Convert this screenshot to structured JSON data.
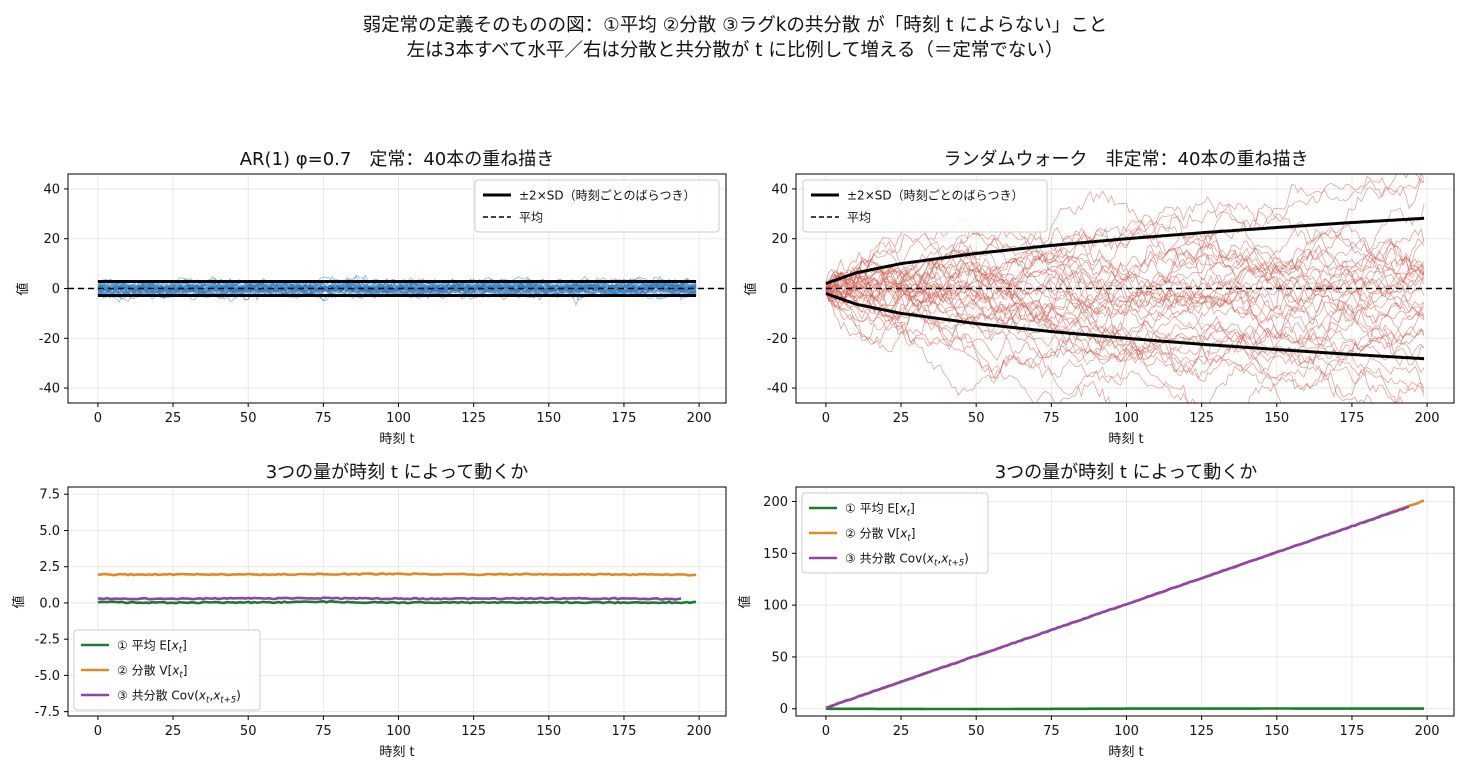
{
  "figure": {
    "suptitle_line1": "弱定常の定義そのものの図：①平均 ②分散 ③ラグkの共分散 が「時刻 t によらない」こと",
    "suptitle_line2": "左は3本すべて水平／右は分散と共分散が t に比例して増える（＝定常でない）"
  },
  "colors": {
    "ar_paths": "#2f7ec1",
    "rw_paths": "#d05a4a",
    "band": "#000000",
    "mean": "#000000",
    "q_mean": "#1e7a2e",
    "q_var": "#e08a25",
    "q_cov": "#8e44a8"
  },
  "chart_data": [
    {
      "id": "ar",
      "type": "line",
      "title": "AR(1) φ=0.7　定常：40本の重ね描き",
      "xlabel": "時刻 t",
      "ylabel": "値",
      "xlim": [
        -9.95,
        208.95
      ],
      "ylim": [
        -46,
        46
      ],
      "xticks": [
        0,
        25,
        50,
        75,
        100,
        125,
        150,
        175,
        200
      ],
      "yticks": [
        -40,
        -20,
        0,
        20,
        40
      ],
      "ytick_labels": [
        "-40",
        "-20",
        "0",
        "20",
        "40"
      ],
      "grid": true,
      "legend_loc": "upper right",
      "model": "ar1",
      "phi": 0.7,
      "n_paths": 40,
      "t_max": 199,
      "band": {
        "label": "±2×SD（時刻ごとのばらつき）",
        "values": [
          2.8,
          -2.8
        ]
      },
      "mean": {
        "label": "平均",
        "value": 0
      }
    },
    {
      "id": "rw",
      "type": "line",
      "title": "ランダムウォーク　非定常：40本の重ね描き",
      "xlabel": "時刻 t",
      "ylabel": "値",
      "xlim": [
        -9.95,
        208.95
      ],
      "ylim": [
        -46,
        46
      ],
      "xticks": [
        0,
        25,
        50,
        75,
        100,
        125,
        150,
        175,
        200
      ],
      "yticks": [
        -40,
        -20,
        0,
        20,
        40
      ],
      "ytick_labels": [
        "-40",
        "-20",
        "0",
        "20",
        "40"
      ],
      "grid": true,
      "legend_loc": "upper left",
      "model": "random_walk",
      "n_paths": 40,
      "t_max": 199,
      "band": {
        "label": "±2×SD（時刻ごとのばらつき）",
        "t": [
          0,
          10,
          25,
          50,
          75,
          100,
          125,
          150,
          175,
          199
        ],
        "upper": [
          2,
          6.3,
          10,
          14.1,
          17.3,
          20,
          22.4,
          24.5,
          26.5,
          28.2
        ]
      },
      "mean": {
        "label": "平均",
        "value": 0
      }
    },
    {
      "id": "q_ar",
      "type": "line",
      "title": "3つの量が時刻 t によって動くか",
      "xlabel": "時刻 t",
      "ylabel": "値",
      "xlim": [
        -9.95,
        208.95
      ],
      "ylim": [
        -7.8,
        8
      ],
      "xticks": [
        0,
        25,
        50,
        75,
        100,
        125,
        150,
        175,
        200
      ],
      "yticks": [
        -7.5,
        -5,
        -2.5,
        0,
        2.5,
        5,
        7.5
      ],
      "ytick_labels": [
        "-7.5",
        "-5.0",
        "-2.5",
        "0.0",
        "2.5",
        "5.0",
        "7.5"
      ],
      "grid": true,
      "legend_loc": "lower left",
      "series": [
        {
          "key": "mean",
          "name": "① 平均 E[xt]",
          "name_main": "① 平均 E[",
          "name_var": "x",
          "name_sub": "t",
          "name_end": "]",
          "color_key": "q_mean",
          "t": [
            0,
            25,
            50,
            75,
            100,
            125,
            150,
            175,
            199
          ],
          "values": [
            0.05,
            0.02,
            0.03,
            0.08,
            0.02,
            0.03,
            0.05,
            0.02,
            0.04
          ]
        },
        {
          "key": "var",
          "name": "② 分散 V[xt]",
          "name_main": "② 分散 V[",
          "name_var": "x",
          "name_sub": "t",
          "name_end": "]",
          "color_key": "q_var",
          "t": [
            0,
            25,
            50,
            75,
            100,
            125,
            150,
            175,
            199
          ],
          "values": [
            1.95,
            1.97,
            1.96,
            1.98,
            2.0,
            1.97,
            1.98,
            1.96,
            1.93
          ]
        },
        {
          "key": "cov",
          "name": "③ 共分散 Cov(xt,xt+5)",
          "name_main": "③ 共分散 Cov(",
          "name_var": "x",
          "name_sub": "t",
          "name_mid": ",",
          "name_var2": "x",
          "name_sub2": "t+5",
          "name_end": ")",
          "color_key": "q_cov",
          "t": [
            0,
            25,
            50,
            75,
            100,
            125,
            150,
            175,
            194
          ],
          "values": [
            0.3,
            0.28,
            0.31,
            0.32,
            0.3,
            0.29,
            0.31,
            0.3,
            0.27
          ]
        }
      ]
    },
    {
      "id": "q_rw",
      "type": "line",
      "title": "3つの量が時刻 t によって動くか",
      "xlabel": "時刻 t",
      "ylabel": "値",
      "xlim": [
        -9.95,
        208.95
      ],
      "ylim": [
        -7,
        214
      ],
      "xticks": [
        0,
        25,
        50,
        75,
        100,
        125,
        150,
        175,
        200
      ],
      "yticks": [
        0,
        50,
        100,
        150,
        200
      ],
      "ytick_labels": [
        "0",
        "50",
        "100",
        "150",
        "200"
      ],
      "grid": true,
      "legend_loc": "upper left",
      "series": [
        {
          "key": "mean",
          "name": "① 平均 E[xt]",
          "name_main": "① 平均 E[",
          "name_var": "x",
          "name_sub": "t",
          "name_end": "]",
          "color_key": "q_mean",
          "t": [
            0,
            50,
            100,
            150,
            199
          ],
          "values": [
            0,
            -0.3,
            0.1,
            0.2,
            0.1
          ]
        },
        {
          "key": "var",
          "name": "② 分散 V[xt]",
          "name_main": "② 分散 V[",
          "name_var": "x",
          "name_sub": "t",
          "name_end": "]",
          "color_key": "q_var",
          "t": [
            0,
            25,
            50,
            75,
            100,
            125,
            150,
            175,
            199
          ],
          "values": [
            1,
            26,
            51,
            76,
            101,
            126,
            151,
            176,
            201
          ]
        },
        {
          "key": "cov",
          "name": "③ 共分散 Cov(xt,xt+5)",
          "name_main": "③ 共分散 Cov(",
          "name_var": "x",
          "name_sub": "t",
          "name_mid": ",",
          "name_var2": "x",
          "name_sub2": "t+5",
          "name_end": ")",
          "color_key": "q_cov",
          "t": [
            0,
            25,
            50,
            75,
            100,
            125,
            150,
            175,
            194
          ],
          "values": [
            1,
            26,
            51,
            76,
            101,
            126,
            151,
            176,
            195
          ]
        }
      ]
    }
  ]
}
